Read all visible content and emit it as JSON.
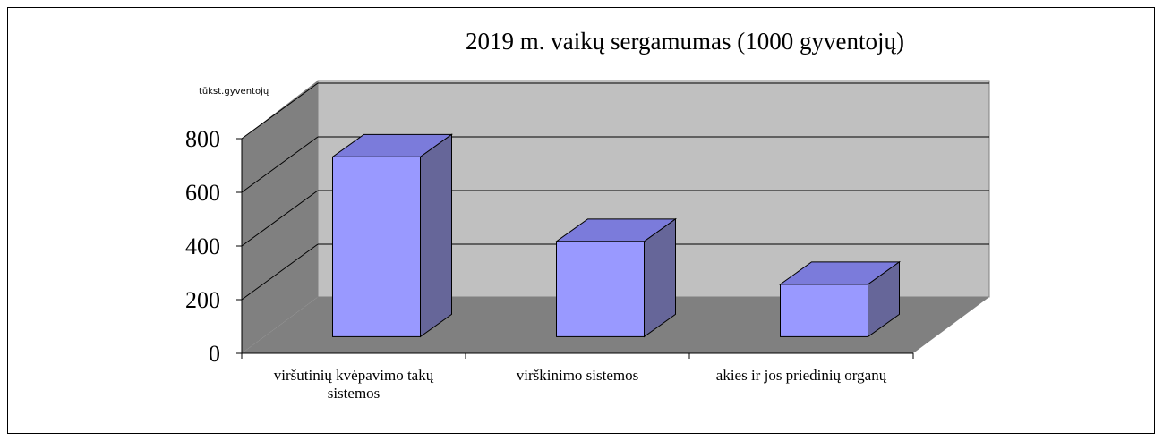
{
  "chart_data": {
    "type": "bar3d",
    "title": "2019 m. vaikų sergamumas (1000 gyventojų)",
    "y_label": "tūkst.gyventojų",
    "categories": [
      "viršutinių kvėpavimo takų sistemos",
      "virškinimo sistemos",
      "akies ir jos priedinių organų"
    ],
    "values": [
      670,
      355,
      195
    ],
    "color": "#9999ff",
    "ylim": [
      0,
      800
    ],
    "yticks": [
      0,
      200,
      400,
      600,
      800
    ],
    "grid": true
  }
}
